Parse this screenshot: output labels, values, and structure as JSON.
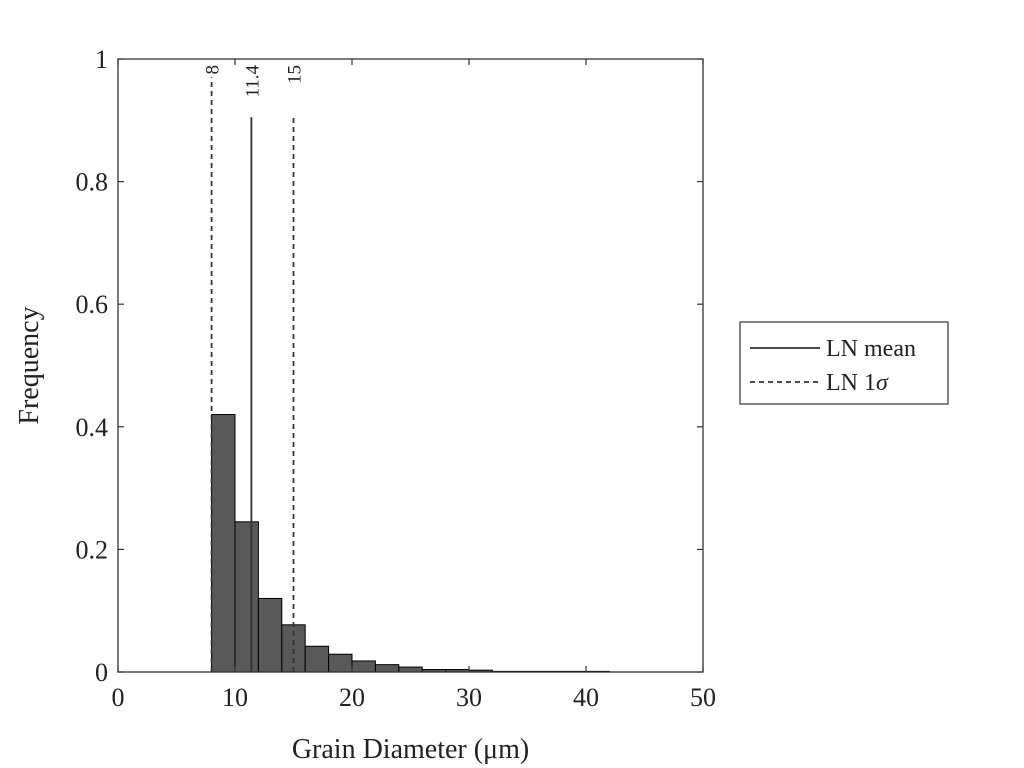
{
  "chart_data": {
    "type": "bar",
    "xlabel": "Grain Diameter (μm)",
    "ylabel": "Frequency",
    "xlim": [
      0,
      50
    ],
    "ylim": [
      0,
      1
    ],
    "xticks": [
      "0",
      "10",
      "20",
      "30",
      "40",
      "50"
    ],
    "yticks": [
      "0",
      "0.2",
      "0.4",
      "0.6",
      "0.8",
      "1"
    ],
    "bin_width": 2,
    "bins": [
      {
        "x0": 8,
        "x1": 10,
        "value": 0.42
      },
      {
        "x0": 10,
        "x1": 12,
        "value": 0.245
      },
      {
        "x0": 12,
        "x1": 14,
        "value": 0.12
      },
      {
        "x0": 14,
        "x1": 16,
        "value": 0.077
      },
      {
        "x0": 16,
        "x1": 18,
        "value": 0.042
      },
      {
        "x0": 18,
        "x1": 20,
        "value": 0.029
      },
      {
        "x0": 20,
        "x1": 22,
        "value": 0.018
      },
      {
        "x0": 22,
        "x1": 24,
        "value": 0.012
      },
      {
        "x0": 24,
        "x1": 26,
        "value": 0.008
      },
      {
        "x0": 26,
        "x1": 28,
        "value": 0.004
      },
      {
        "x0": 28,
        "x1": 30,
        "value": 0.004
      },
      {
        "x0": 30,
        "x1": 32,
        "value": 0.003
      },
      {
        "x0": 32,
        "x1": 34,
        "value": 0.001
      },
      {
        "x0": 34,
        "x1": 36,
        "value": 0.001
      },
      {
        "x0": 36,
        "x1": 38,
        "value": 0.0005
      },
      {
        "x0": 38,
        "x1": 40,
        "value": 0.0005
      },
      {
        "x0": 40,
        "x1": 42,
        "value": 0.0003
      }
    ],
    "vertical_lines": [
      {
        "x": 8.0,
        "label": "8",
        "style": "dashed",
        "top": 0.97
      },
      {
        "x": 11.4,
        "label": "11.4",
        "style": "solid",
        "top": 0.905
      },
      {
        "x": 15.0,
        "label": "15",
        "style": "dashed",
        "top": 0.905
      }
    ],
    "legend": {
      "placement": "right",
      "entries": [
        {
          "label": "LN mean",
          "style": "solid"
        },
        {
          "label": "LN 1",
          "symbol": "σ",
          "style": "dashed"
        }
      ]
    },
    "colors": {
      "bar_fill": "#595959",
      "bar_edge": "#000000",
      "line": "#333333",
      "axis": "#333333"
    }
  }
}
